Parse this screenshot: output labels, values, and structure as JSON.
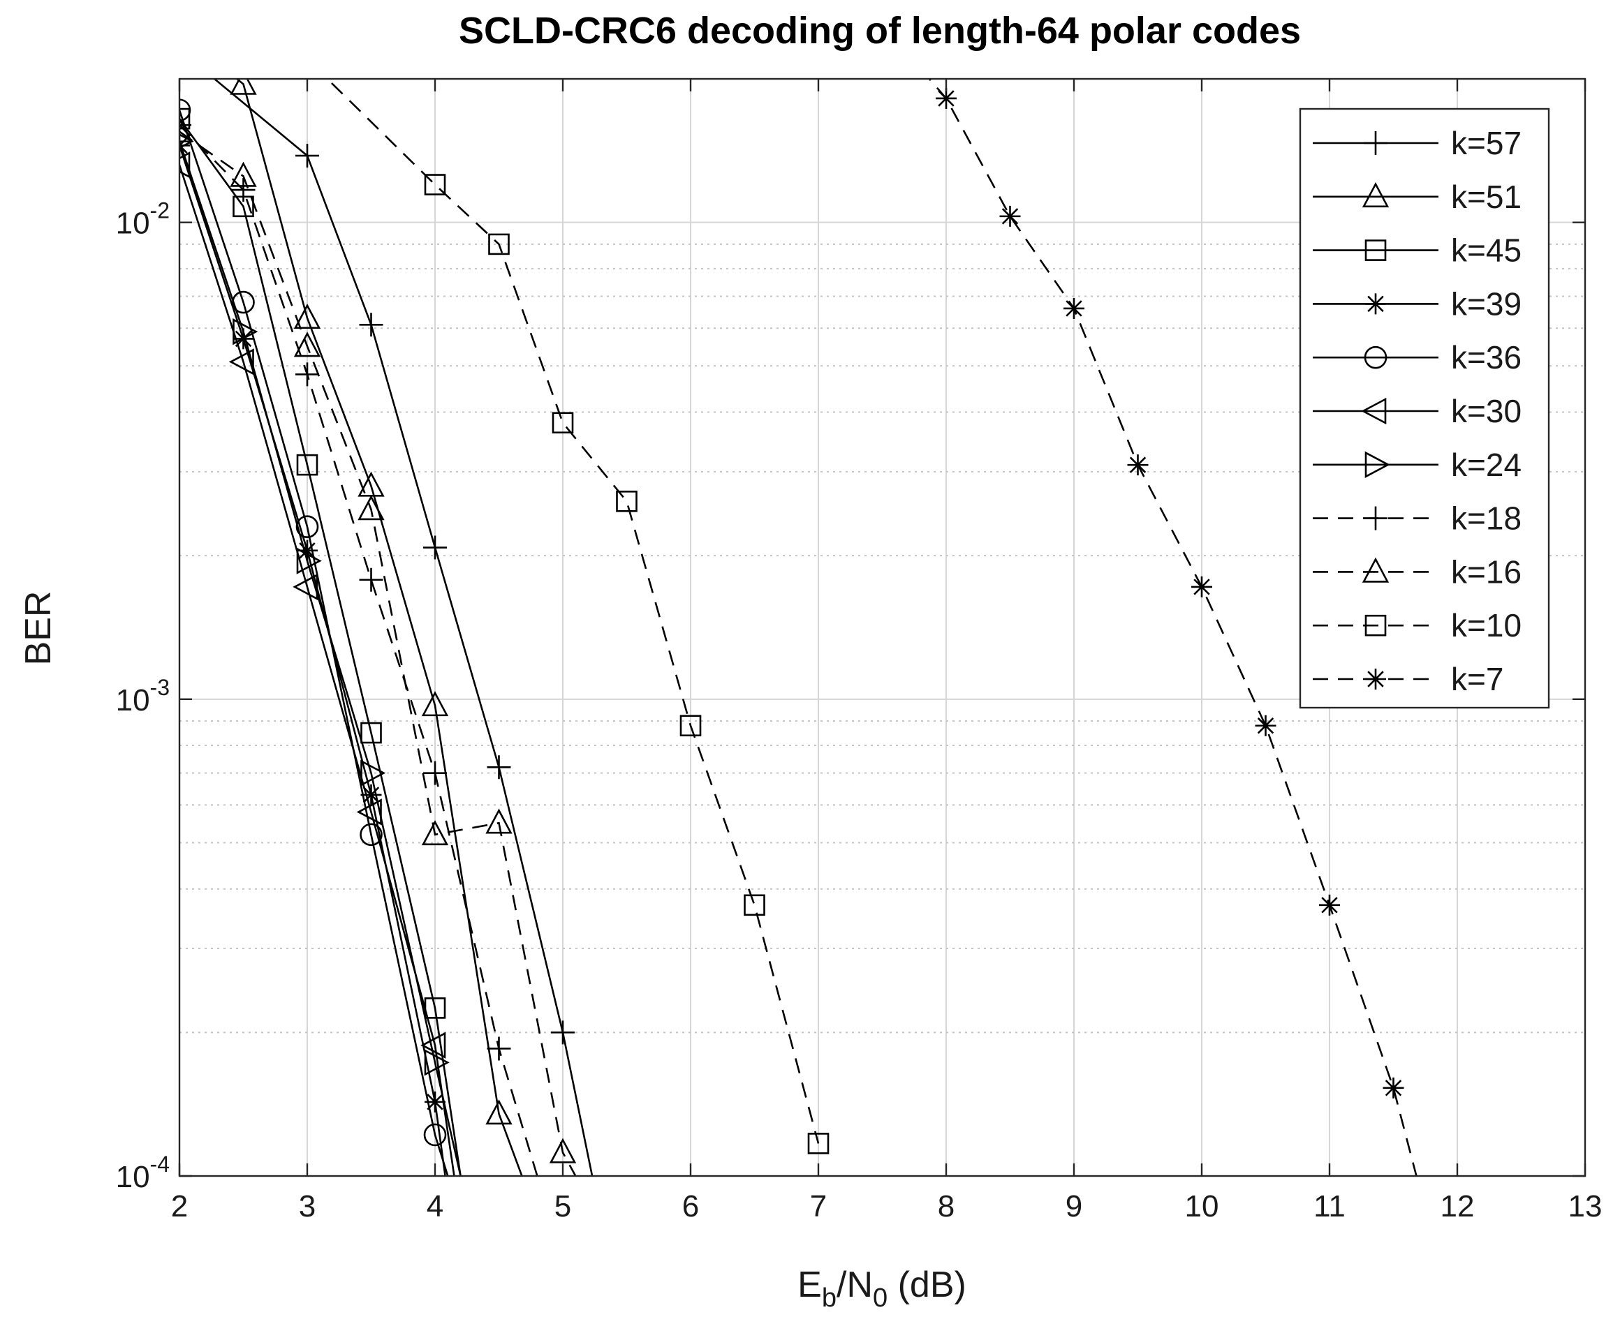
{
  "chart_data": {
    "type": "line",
    "title": "SCLD-CRC6 decoding of length-64 polar codes",
    "xlabel": {
      "main": "E",
      "sub1": "b",
      "mid": "/N",
      "sub2": "0",
      "tail": " (dB)"
    },
    "ylabel": "BER",
    "xlim": [
      2,
      13
    ],
    "ylim": [
      0.0001,
      0.02
    ],
    "yscale": "log",
    "grid": true,
    "legend_position": "top-right",
    "x_ticks": [
      "2",
      "3",
      "4",
      "5",
      "6",
      "7",
      "8",
      "9",
      "10",
      "11",
      "12",
      "13"
    ],
    "y_ticks": [
      {
        "value": 0.01,
        "base": "10",
        "exp": "-2"
      },
      {
        "value": 0.001,
        "base": "10",
        "exp": "-3"
      },
      {
        "value": 0.0001,
        "base": "10",
        "exp": "-4"
      }
    ],
    "series": [
      {
        "name": "k=57",
        "marker": "plus",
        "dash": "solid",
        "x": [
          2.0,
          3.0,
          3.5,
          4.0,
          4.5,
          5.0,
          5.23
        ],
        "y": [
          0.023,
          0.0138,
          0.0061,
          0.00208,
          0.00072,
          0.0002,
          0.0001
        ]
      },
      {
        "name": "k=51",
        "marker": "triangle-up",
        "dash": "solid",
        "x": [
          2.0,
          2.5,
          3.0,
          3.5,
          4.0,
          4.5,
          4.68
        ],
        "y": [
          0.025,
          0.0195,
          0.0063,
          0.0028,
          0.00097,
          0.000135,
          0.0001
        ]
      },
      {
        "name": "k=45",
        "marker": "square",
        "dash": "solid",
        "x": [
          2.0,
          2.5,
          3.0,
          3.5,
          4.0,
          4.2
        ],
        "y": [
          0.0165,
          0.0108,
          0.0031,
          0.00085,
          0.000225,
          0.0001
        ]
      },
      {
        "name": "k=39",
        "marker": "star",
        "dash": "solid",
        "x": [
          2.0,
          2.5,
          3.0,
          3.5,
          4.0,
          4.08
        ],
        "y": [
          0.0145,
          0.0057,
          0.00205,
          0.00063,
          0.000143,
          0.0001
        ]
      },
      {
        "name": "k=36",
        "marker": "circle",
        "dash": "solid",
        "x": [
          2.0,
          2.5,
          3.0,
          3.5,
          4.0,
          4.1
        ],
        "y": [
          0.0172,
          0.0068,
          0.0023,
          0.00052,
          0.000122,
          0.0001
        ]
      },
      {
        "name": "k=30",
        "marker": "triangle-left",
        "dash": "solid",
        "x": [
          2.0,
          2.5,
          3.0,
          3.5,
          4.0,
          4.15
        ],
        "y": [
          0.0132,
          0.0051,
          0.00172,
          0.00058,
          0.000188,
          0.0001
        ]
      },
      {
        "name": "k=24",
        "marker": "triangle-right",
        "dash": "solid",
        "x": [
          2.0,
          2.5,
          3.0,
          3.5,
          4.0,
          4.2
        ],
        "y": [
          0.0148,
          0.0059,
          0.00195,
          0.0007,
          0.000173,
          0.0001
        ]
      },
      {
        "name": "k=18",
        "marker": "plus",
        "dash": "dashed",
        "x": [
          2.0,
          2.5,
          3.0,
          3.5,
          4.0,
          4.5,
          4.8
        ],
        "y": [
          0.016,
          0.0117,
          0.0048,
          0.00178,
          0.0007,
          0.000185,
          0.0001
        ]
      },
      {
        "name": "k=16",
        "marker": "triangle-up",
        "dash": "dashed",
        "x": [
          2.0,
          2.5,
          3.0,
          3.5,
          4.0,
          4.5,
          5.0,
          5.1
        ],
        "y": [
          0.0155,
          0.0125,
          0.0055,
          0.0025,
          0.00052,
          0.00055,
          0.000112,
          0.0001
        ]
      },
      {
        "name": "k=10",
        "marker": "square",
        "dash": "dashed",
        "x": [
          2.5,
          3.0,
          4.0,
          4.5,
          5.0,
          5.5,
          6.0,
          6.5,
          7.0
        ],
        "y": [
          0.024,
          0.022,
          0.012,
          0.009,
          0.0038,
          0.0026,
          0.00088,
          0.00037,
          0.000117
        ]
      },
      {
        "name": "k=7",
        "marker": "star",
        "dash": "dashed",
        "x": [
          7.8,
          8.0,
          8.5,
          9.0,
          9.5,
          10.0,
          10.5,
          11.0,
          11.5,
          11.68
        ],
        "y": [
          0.021,
          0.0182,
          0.0103,
          0.0066,
          0.0031,
          0.00172,
          0.00088,
          0.00037,
          0.000153,
          0.0001
        ]
      }
    ]
  }
}
